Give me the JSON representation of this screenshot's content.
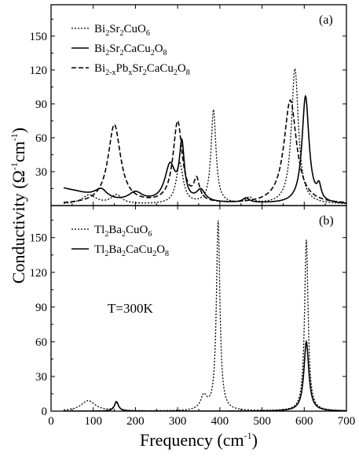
{
  "figure": {
    "ylabel_parts": [
      "Conductivity (",
      "Ω",
      "-1",
      "cm",
      "-1",
      ")"
    ],
    "xlabel_parts": [
      "Frequency (cm",
      "-1",
      ")"
    ]
  },
  "chart_data": [
    {
      "type": "line",
      "panel_label": "(a)",
      "xlim": [
        0,
        700
      ],
      "ylim": [
        0,
        175
      ],
      "xticks": [
        0,
        100,
        200,
        300,
        400,
        500,
        600,
        700
      ],
      "yticks": [
        30,
        60,
        90,
        120,
        150
      ],
      "legend_position": "top-left",
      "series": [
        {
          "name": "Bi2Sr2CuO6",
          "legend_parts": [
            [
              "Bi",
              ""
            ],
            [
              "2",
              "sub"
            ],
            [
              "Sr",
              ""
            ],
            [
              "2",
              "sub"
            ],
            [
              "CuO",
              ""
            ],
            [
              "6",
              "sub"
            ]
          ],
          "style": "dotted",
          "lorentz_peaks": [
            [
              90,
              8,
              40
            ],
            [
              155,
              8,
              30
            ],
            [
              305,
              36,
              20
            ],
            [
              385,
              83,
              14
            ],
            [
              470,
              5,
              20
            ],
            [
              578,
              120,
              20
            ]
          ],
          "background": [
            [
              30,
              1
            ],
            [
              100,
              1
            ],
            [
              700,
              1
            ]
          ]
        },
        {
          "name": "Bi2Sr2CaCu2O8",
          "legend_parts": [
            [
              "Bi",
              ""
            ],
            [
              "2",
              "sub"
            ],
            [
              "Sr",
              ""
            ],
            [
              "2",
              "sub"
            ],
            [
              "CaCu",
              ""
            ],
            [
              "2",
              "sub"
            ],
            [
              "O",
              ""
            ],
            [
              "8",
              "sub"
            ]
          ],
          "style": "solid",
          "lorentz_peaks": [
            [
              120,
              10,
              40
            ],
            [
              200,
              8,
              40
            ],
            [
              282,
              32,
              30
            ],
            [
              310,
              48,
              14
            ],
            [
              355,
              10,
              25
            ],
            [
              462,
              4,
              20
            ],
            [
              603,
              95,
              20
            ],
            [
              635,
              12,
              12
            ]
          ],
          "background": [
            [
              30,
              15
            ],
            [
              60,
              12
            ],
            [
              100,
              7
            ],
            [
              130,
              3
            ],
            [
              700,
              1
            ]
          ]
        },
        {
          "name": "Bi2-xPbxSr2CaCu2O8",
          "legend_parts": [
            [
              "Bi",
              ""
            ],
            [
              "2-x",
              "sub"
            ],
            [
              "Pb",
              ""
            ],
            [
              "x",
              "sub"
            ],
            [
              "Sr",
              ""
            ],
            [
              "2",
              "sub"
            ],
            [
              "CaCu",
              ""
            ],
            [
              "2",
              "sub"
            ],
            [
              "O",
              ""
            ],
            [
              "8",
              "sub"
            ]
          ],
          "style": "dashed",
          "lorentz_peaks": [
            [
              150,
              70,
              36
            ],
            [
              300,
              72,
              26
            ],
            [
              345,
              18,
              16
            ],
            [
              567,
              92,
              36
            ]
          ],
          "background": [
            [
              30,
              1
            ],
            [
              700,
              1
            ]
          ]
        }
      ]
    },
    {
      "type": "line",
      "panel_label": "(b)",
      "annotation": "T=300K",
      "xlim": [
        0,
        700
      ],
      "ylim": [
        0,
        175
      ],
      "xticks": [
        0,
        100,
        200,
        300,
        400,
        500,
        600,
        700
      ],
      "yticks": [
        0,
        30,
        60,
        90,
        120,
        150
      ],
      "legend_position": "top-left",
      "series": [
        {
          "name": "Tl2Ba2CuO6",
          "legend_parts": [
            [
              "Tl",
              ""
            ],
            [
              "2",
              "sub"
            ],
            [
              "Ba",
              ""
            ],
            [
              "2",
              "sub"
            ],
            [
              "CuO",
              ""
            ],
            [
              "6",
              "sub"
            ]
          ],
          "style": "dotted",
          "lorentz_peaks": [
            [
              88,
              9,
              40
            ],
            [
              155,
              8,
              10
            ],
            [
              362,
              12,
              18
            ],
            [
              396,
              164,
              10
            ],
            [
              605,
              148,
              10
            ]
          ],
          "background": [
            [
              30,
              0
            ],
            [
              700,
              0
            ]
          ]
        },
        {
          "name": "Tl2Ba2CaCu2O8",
          "legend_parts": [
            [
              "Tl",
              ""
            ],
            [
              "2",
              "sub"
            ],
            [
              "Ba",
              ""
            ],
            [
              "2",
              "sub"
            ],
            [
              "CaCu",
              ""
            ],
            [
              "2",
              "sub"
            ],
            [
              "O",
              ""
            ],
            [
              "8",
              "sub"
            ]
          ],
          "style": "solid",
          "lorentz_peaks": [
            [
              155,
              8,
              12
            ],
            [
              605,
              60,
              14
            ]
          ],
          "background": [
            [
              30,
              0
            ],
            [
              700,
              0
            ]
          ]
        }
      ]
    }
  ]
}
